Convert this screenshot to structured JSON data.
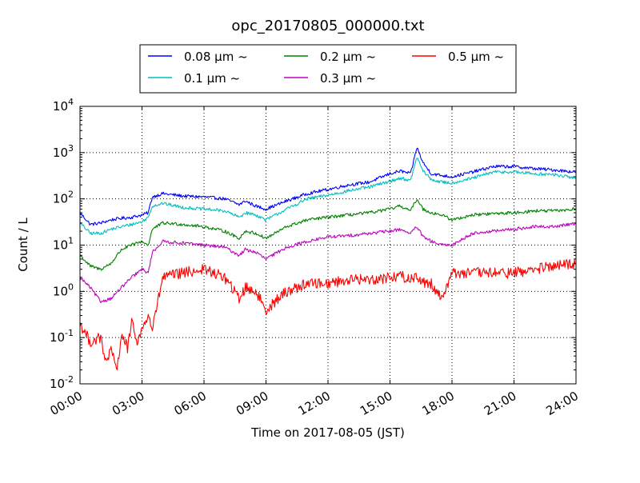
{
  "chart_data": {
    "type": "line",
    "title": "opc_20170805_000000.txt",
    "xlabel": "Time on 2017-08-05 (JST)",
    "ylabel": "Count / L",
    "xlim": [
      0,
      24
    ],
    "ylim": [
      0.01,
      10000
    ],
    "yscale": "log",
    "grid": true,
    "legend_position": "top-center-outside",
    "x_ticks": [
      0,
      3,
      6,
      9,
      12,
      15,
      18,
      21,
      24
    ],
    "x_tick_labels": [
      "00:00",
      "03:00",
      "06:00",
      "09:00",
      "12:00",
      "15:00",
      "18:00",
      "21:00",
      "24:00"
    ],
    "y_ticks": [
      {
        "value": 0.01,
        "base": "10",
        "exp": "-2"
      },
      {
        "value": 0.1,
        "base": "10",
        "exp": "-1"
      },
      {
        "value": 1,
        "base": "10",
        "exp": "0"
      },
      {
        "value": 10,
        "base": "10",
        "exp": "1"
      },
      {
        "value": 100,
        "base": "10",
        "exp": "2"
      },
      {
        "value": 1000,
        "base": "10",
        "exp": "3"
      },
      {
        "value": 10000,
        "base": "10",
        "exp": "4"
      }
    ],
    "series": [
      {
        "name": "0.08 μm ~",
        "color": "#0000ff",
        "x": [
          0,
          0.5,
          1,
          1.5,
          2,
          2.5,
          3,
          3.3,
          3.5,
          4,
          5,
          6,
          7,
          7.7,
          8,
          8.5,
          9,
          10,
          11,
          12,
          13,
          14,
          15,
          15.5,
          16,
          16.3,
          16.6,
          17,
          17.5,
          18,
          19,
          20,
          21,
          22,
          23,
          24
        ],
        "y": [
          50,
          28,
          30,
          35,
          38,
          40,
          45,
          50,
          110,
          130,
          115,
          110,
          100,
          75,
          90,
          70,
          60,
          90,
          130,
          160,
          200,
          230,
          350,
          400,
          350,
          1300,
          600,
          350,
          320,
          300,
          380,
          500,
          500,
          450,
          420,
          380
        ]
      },
      {
        "name": "0.1 μm ~",
        "color": "#00bfbf",
        "x": [
          0,
          0.5,
          1,
          1.5,
          2,
          2.5,
          3,
          3.3,
          3.5,
          4,
          5,
          6,
          7,
          7.7,
          8,
          8.5,
          9,
          10,
          11,
          12,
          13,
          14,
          15,
          15.5,
          16,
          16.3,
          16.6,
          17,
          17.5,
          18,
          19,
          20,
          21,
          22,
          23,
          24
        ],
        "y": [
          30,
          18,
          18,
          22,
          25,
          28,
          32,
          40,
          70,
          80,
          65,
          60,
          55,
          40,
          50,
          45,
          35,
          60,
          100,
          120,
          150,
          180,
          240,
          280,
          250,
          800,
          400,
          260,
          230,
          220,
          280,
          380,
          380,
          350,
          330,
          280
        ]
      },
      {
        "name": "0.2 μm ~",
        "color": "#008000",
        "x": [
          0,
          0.5,
          1,
          1.5,
          2,
          2.5,
          3,
          3.3,
          3.5,
          4,
          5,
          6,
          7,
          7.7,
          8,
          8.5,
          9,
          10,
          11,
          12,
          13,
          14,
          15,
          15.5,
          16,
          16.3,
          16.6,
          17,
          17.5,
          18,
          19,
          20,
          21,
          22,
          23,
          24
        ],
        "y": [
          6,
          3.5,
          3,
          4,
          8,
          10,
          12,
          10,
          22,
          30,
          28,
          25,
          20,
          14,
          20,
          18,
          14,
          25,
          35,
          40,
          45,
          50,
          60,
          70,
          55,
          100,
          60,
          50,
          45,
          35,
          45,
          48,
          50,
          55,
          55,
          60
        ]
      },
      {
        "name": "0.3 μm ~",
        "color": "#bf00bf",
        "x": [
          0,
          0.5,
          1,
          1.5,
          2,
          2.5,
          3,
          3.3,
          3.5,
          4,
          5,
          6,
          7,
          7.7,
          8,
          8.5,
          9,
          10,
          11,
          12,
          13,
          14,
          15,
          15.5,
          16,
          16.3,
          16.6,
          17,
          17.5,
          18,
          19,
          20,
          21,
          22,
          23,
          24
        ],
        "y": [
          2,
          1.2,
          0.6,
          0.7,
          1.2,
          2,
          3,
          2.5,
          7,
          12,
          11,
          10,
          9,
          6,
          8,
          7,
          5,
          9,
          12,
          15,
          16,
          18,
          20,
          22,
          18,
          25,
          15,
          12,
          10,
          10,
          18,
          20,
          22,
          25,
          25,
          30
        ]
      },
      {
        "name": "0.5 μm ~",
        "color": "#ff0000",
        "x": [
          0,
          0.5,
          1,
          1.2,
          1.5,
          1.8,
          2,
          2.3,
          2.5,
          2.8,
          3,
          3.3,
          3.5,
          4,
          5,
          6,
          7,
          7.7,
          8,
          8.5,
          9,
          10,
          11,
          12,
          13,
          14,
          15,
          15.5,
          16,
          16.3,
          16.6,
          17,
          17.5,
          18,
          19,
          20,
          21,
          22,
          23,
          24
        ],
        "y": [
          0.2,
          0.08,
          0.1,
          0.03,
          0.05,
          0.02,
          0.12,
          0.06,
          0.2,
          0.08,
          0.15,
          0.3,
          0.15,
          2.0,
          2.5,
          3.0,
          2.0,
          0.7,
          1.2,
          1.0,
          0.4,
          1.0,
          1.5,
          1.5,
          1.8,
          1.8,
          2.0,
          2.2,
          1.8,
          2.2,
          1.5,
          1.5,
          0.7,
          2.5,
          2.5,
          2.5,
          2.5,
          3.0,
          3.5,
          4.0
        ]
      }
    ]
  }
}
